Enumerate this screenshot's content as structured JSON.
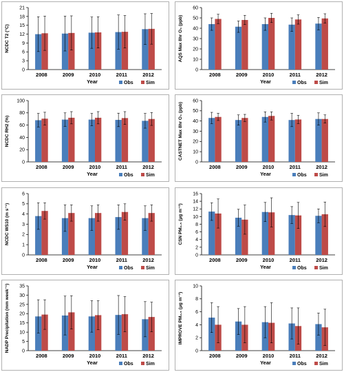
{
  "colors": {
    "obs": "#4a7ebb",
    "sim": "#be4b48",
    "error_bar": "#000000",
    "frame": "#b0b0b0"
  },
  "chart_data": [
    {
      "type": "bar",
      "categories": [
        "2008",
        "2009",
        "2010",
        "2011",
        "2012"
      ],
      "xlabel": "Year",
      "ylabel": "NCDC T2 (°C)",
      "ylim": [
        0,
        21
      ],
      "yticks": [
        0,
        3,
        6,
        9,
        12,
        15,
        18,
        21
      ],
      "series": [
        {
          "name": "Obs",
          "values": [
            12.0,
            12.2,
            12.5,
            12.7,
            13.7
          ],
          "err": [
            5.9,
            5.9,
            5.3,
            5.8,
            5.2
          ]
        },
        {
          "name": "Sim",
          "values": [
            12.3,
            12.4,
            12.6,
            12.8,
            13.8
          ],
          "err": [
            5.8,
            5.8,
            5.3,
            5.5,
            5.2
          ]
        }
      ]
    },
    {
      "type": "bar",
      "categories": [
        "2008",
        "2009",
        "2010",
        "2011",
        "2012"
      ],
      "xlabel": "Year",
      "ylabel": "AQS Max 8hr O₃ (ppb)",
      "ylim": [
        0,
        60
      ],
      "yticks": [
        0,
        10,
        20,
        30,
        40,
        50,
        60
      ],
      "series": [
        {
          "name": "Obs",
          "values": [
            44,
            41.5,
            44,
            43.5,
            44.5
          ],
          "err": [
            6,
            5.5,
            6,
            6.5,
            6
          ]
        },
        {
          "name": "Sim",
          "values": [
            49,
            48,
            50,
            48.5,
            49.5
          ],
          "err": [
            4.5,
            4.5,
            4.5,
            4.5,
            4.5
          ]
        }
      ]
    },
    {
      "type": "bar",
      "categories": [
        "2008",
        "2009",
        "2010",
        "2011",
        "2012"
      ],
      "xlabel": "Year",
      "ylabel": "NCDC RH2 (%)",
      "ylim": [
        0,
        100
      ],
      "yticks": [
        0,
        20,
        40,
        60,
        80,
        100
      ],
      "series": [
        {
          "name": "Obs",
          "values": [
            68,
            69,
            69,
            68.5,
            67
          ],
          "err": [
            11,
            11,
            10,
            11,
            12
          ]
        },
        {
          "name": "Sim",
          "values": [
            70.5,
            72,
            72,
            71.5,
            70
          ],
          "err": [
            10.5,
            10,
            10,
            10.5,
            10.5
          ]
        }
      ]
    },
    {
      "type": "bar",
      "categories": [
        "2008",
        "2009",
        "2010",
        "2011",
        "2012"
      ],
      "xlabel": "Year",
      "ylabel": "CASTNET Max 8hr O₃ (ppb)",
      "ylim": [
        0,
        60
      ],
      "yticks": [
        0,
        10,
        20,
        30,
        40,
        50,
        60
      ],
      "series": [
        {
          "name": "Obs",
          "values": [
            43,
            41,
            44,
            41,
            42
          ],
          "err": [
            5.5,
            5,
            5,
            6.5,
            6
          ]
        },
        {
          "name": "Sim",
          "values": [
            44,
            43,
            45,
            41.5,
            42
          ],
          "err": [
            3.5,
            3.5,
            4,
            4,
            4
          ]
        }
      ]
    },
    {
      "type": "bar",
      "categories": [
        "2008",
        "2009",
        "2010",
        "2011",
        "2012"
      ],
      "xlabel": "Year",
      "ylabel": "NCDC WS10 (m s⁻¹)",
      "ylim": [
        0,
        6
      ],
      "yticks": [
        0,
        1,
        2,
        3,
        4,
        5,
        6
      ],
      "series": [
        {
          "name": "Obs",
          "values": [
            3.8,
            3.6,
            3.6,
            3.7,
            3.6
          ],
          "err": [
            1.3,
            1.3,
            1.2,
            1.2,
            1.2
          ]
        },
        {
          "name": "Sim",
          "values": [
            4.3,
            4.1,
            4.1,
            4.2,
            4.1
          ],
          "err": [
            0.8,
            0.8,
            0.8,
            0.8,
            0.8
          ]
        }
      ]
    },
    {
      "type": "bar",
      "categories": [
        "2008",
        "2009",
        "2010",
        "2011",
        "2012"
      ],
      "xlabel": "Year",
      "ylabel": "CSN PM₂.₅ (μg m⁻³)",
      "ylim": [
        0,
        16
      ],
      "yticks": [
        0,
        2,
        4,
        6,
        8,
        10,
        12,
        14,
        16
      ],
      "series": [
        {
          "name": "Obs",
          "values": [
            11.3,
            9.7,
            11.2,
            10.4,
            10.2
          ],
          "err": [
            2.3,
            2.2,
            2.5,
            2.2,
            1.8
          ]
        },
        {
          "name": "Sim",
          "values": [
            10.8,
            9.2,
            11.1,
            10.3,
            10.6
          ],
          "err": [
            3.8,
            3.8,
            3.8,
            3.4,
            3.2
          ]
        }
      ]
    },
    {
      "type": "bar",
      "categories": [
        "2008",
        "2009",
        "2010",
        "2011",
        "2012"
      ],
      "xlabel": "Year",
      "ylabel": "NADP Precipitation (mm week⁻¹)",
      "ylim": [
        0,
        35
      ],
      "yticks": [
        0,
        5,
        10,
        15,
        20,
        25,
        30,
        35
      ],
      "series": [
        {
          "name": "Obs",
          "values": [
            18.5,
            19,
            18.5,
            19.3,
            17
          ],
          "err": [
            9,
            10.5,
            8.5,
            10.5,
            9.5
          ]
        },
        {
          "name": "Sim",
          "values": [
            19.5,
            20.7,
            19.2,
            19.7,
            18.2
          ],
          "err": [
            8,
            9,
            7.8,
            9.5,
            8
          ]
        }
      ]
    },
    {
      "type": "bar",
      "categories": [
        "2008",
        "2009",
        "2010",
        "2011",
        "2012"
      ],
      "xlabel": "Year",
      "ylabel": "IMPROVE PM₂.₅ (μg m⁻³)",
      "ylim": [
        0,
        10
      ],
      "yticks": [
        0,
        2,
        4,
        6,
        8,
        10
      ],
      "series": [
        {
          "name": "Obs",
          "values": [
            5.1,
            4.5,
            4.4,
            4.2,
            4.1
          ],
          "err": [
            2.3,
            2.0,
            2.4,
            2.4,
            1.7
          ]
        },
        {
          "name": "Sim",
          "values": [
            4.0,
            4.0,
            4.3,
            3.8,
            3.6
          ],
          "err": [
            2.8,
            2.8,
            3.1,
            2.8,
            2.8
          ]
        }
      ]
    }
  ]
}
